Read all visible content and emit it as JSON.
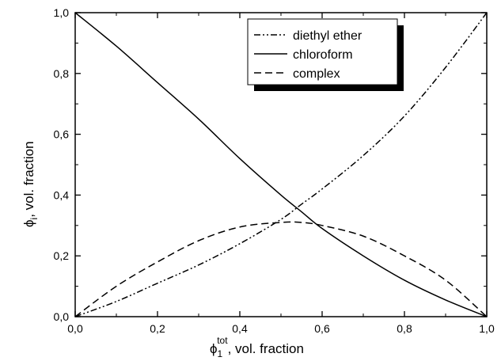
{
  "chart_data": {
    "type": "line",
    "xlabel": {
      "symbol": "ϕ",
      "sup": "tot",
      "sub": "1",
      "rest": ", vol. fraction"
    },
    "ylabel": {
      "symbol": "ϕ",
      "sub": "i",
      "rest": ", vol. fraction"
    },
    "xlim": [
      0,
      1
    ],
    "ylim": [
      0,
      1
    ],
    "x_ticks": [
      "0,0",
      "0,2",
      "0,4",
      "0,6",
      "0,8",
      "1,0"
    ],
    "y_ticks": [
      "0,0",
      "0,2",
      "0,4",
      "0,6",
      "0,8",
      "1,0"
    ],
    "grid": false,
    "legend_position": "top-right",
    "x": [
      0,
      0.1,
      0.2,
      0.3,
      0.4,
      0.5,
      0.55,
      0.6,
      0.7,
      0.8,
      0.9,
      1.0
    ],
    "series": [
      {
        "name": "diethyl ether",
        "style": "dash-dot-dot",
        "values": [
          0,
          0.05,
          0.11,
          0.17,
          0.24,
          0.32,
          0.37,
          0.42,
          0.53,
          0.66,
          0.82,
          1.0
        ]
      },
      {
        "name": "chloroform",
        "style": "solid",
        "values": [
          1.0,
          0.89,
          0.77,
          0.65,
          0.52,
          0.4,
          0.345,
          0.29,
          0.2,
          0.12,
          0.055,
          0
        ]
      },
      {
        "name": "complex",
        "style": "dashed",
        "values": [
          0,
          0.1,
          0.18,
          0.25,
          0.295,
          0.31,
          0.31,
          0.3,
          0.265,
          0.2,
          0.12,
          0
        ]
      }
    ]
  }
}
